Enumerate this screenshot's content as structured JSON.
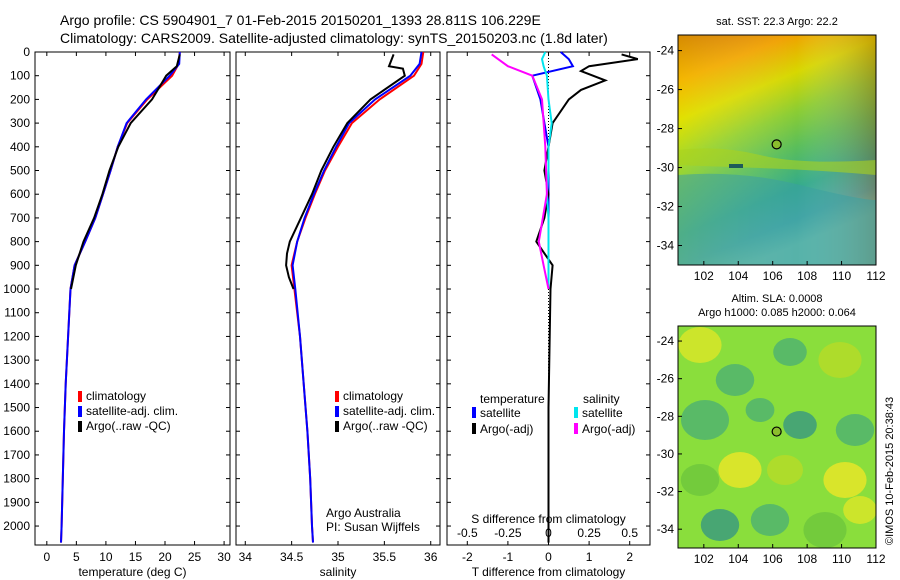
{
  "header": {
    "line1": "Argo profile: CS 5904901_7 01-Feb-2015 20150201_1393 28.811S 106.229E",
    "line2": "Climatology: CARS2009. Satellite-adjusted climatology: synTS_20150203.nc (1.8d later)"
  },
  "depth_ticks": [
    "0",
    "100",
    "200",
    "300",
    "400",
    "500",
    "600",
    "700",
    "800",
    "900",
    "1000",
    "1100",
    "1200",
    "1300",
    "1400",
    "1500",
    "1600",
    "1700",
    "1800",
    "1900",
    "2000"
  ],
  "colors": {
    "climatology": "#ff0000",
    "satellite": "#0000ff",
    "argo": "#000000",
    "sat_salinity": "#00e5ee",
    "argo_salinity": "#ff00ff"
  },
  "chart_data": [
    {
      "type": "line",
      "panel": "temperature",
      "xlabel": "temperature (deg C)",
      "xticks": [
        "0",
        "5",
        "10",
        "15",
        "20",
        "25",
        "30"
      ],
      "xlim": [
        -2,
        31
      ],
      "ylim": [
        2080,
        0
      ],
      "legend": [
        "climatology",
        "satellite-adj. clim.",
        "Argo(..raw -QC)"
      ],
      "series": [
        {
          "name": "climatology",
          "color": "#ff0000",
          "depth": [
            0,
            50,
            100,
            200,
            300,
            400,
            500,
            600,
            700,
            800,
            900,
            1000,
            1200,
            1400,
            1600,
            1800,
            2000,
            2070
          ],
          "values": [
            22.5,
            22.3,
            21.2,
            17.0,
            13.6,
            12.0,
            10.8,
            9.5,
            8.2,
            6.5,
            4.7,
            4.0,
            3.6,
            3.2,
            2.9,
            2.7,
            2.5,
            2.4
          ]
        },
        {
          "name": "satellite-adj. clim.",
          "color": "#0000ff",
          "depth": [
            0,
            50,
            100,
            200,
            300,
            400,
            500,
            600,
            700,
            800,
            900,
            1000,
            1200,
            1400,
            1600,
            1800,
            2000,
            2070
          ],
          "values": [
            22.5,
            22.4,
            20.8,
            16.8,
            13.5,
            12.0,
            10.8,
            9.5,
            8.2,
            6.5,
            4.7,
            4.0,
            3.6,
            3.2,
            2.9,
            2.7,
            2.5,
            2.4
          ]
        },
        {
          "name": "Argo(..raw -QC)",
          "color": "#000000",
          "depth": [
            10,
            60,
            100,
            150,
            200,
            300,
            400,
            500,
            600,
            700,
            800,
            900,
            1000
          ],
          "values": [
            22.5,
            22.0,
            20.2,
            19.0,
            17.8,
            14.2,
            12.1,
            10.6,
            9.4,
            8.0,
            6.2,
            4.9,
            4.1
          ]
        }
      ]
    },
    {
      "type": "line",
      "panel": "salinity",
      "xlabel": "salinity",
      "xticks": [
        "34",
        "34.5",
        "35",
        "35.5",
        "36"
      ],
      "xlim": [
        33.9,
        36.1
      ],
      "ylim": [
        2080,
        0
      ],
      "legend": [
        "climatology",
        "satellite-adj. clim.",
        "Argo(..raw -QC)"
      ],
      "annotation": [
        "Argo Australia",
        "PI: Susan Wijffels"
      ],
      "series": [
        {
          "name": "climatology",
          "color": "#ff0000",
          "depth": [
            0,
            50,
            100,
            200,
            300,
            400,
            500,
            600,
            700,
            800,
            900,
            1000,
            1200,
            1400,
            1600,
            1800,
            2000,
            2070
          ],
          "values": [
            35.92,
            35.9,
            35.82,
            35.45,
            35.15,
            35.0,
            34.86,
            34.75,
            34.65,
            34.56,
            34.5,
            34.53,
            34.59,
            34.63,
            34.67,
            34.7,
            34.72,
            34.73
          ]
        },
        {
          "name": "satellite-adj. clim.",
          "color": "#0000ff",
          "depth": [
            0,
            50,
            100,
            200,
            300,
            400,
            500,
            600,
            700,
            800,
            900,
            1000,
            1200,
            1400,
            1600,
            1800,
            2000,
            2070
          ],
          "values": [
            35.9,
            35.88,
            35.78,
            35.4,
            35.12,
            34.98,
            34.85,
            34.74,
            34.64,
            34.56,
            34.51,
            34.54,
            34.59,
            34.63,
            34.67,
            34.7,
            34.72,
            34.73
          ]
        },
        {
          "name": "Argo(..raw -QC)",
          "color": "#000000",
          "depth": [
            10,
            60,
            70,
            100,
            200,
            300,
            400,
            500,
            600,
            700,
            800,
            850,
            900,
            950,
            1000
          ],
          "values": [
            35.6,
            35.55,
            35.7,
            35.72,
            35.35,
            35.1,
            34.95,
            34.82,
            34.72,
            34.6,
            34.48,
            34.45,
            34.44,
            34.47,
            34.52
          ]
        }
      ]
    },
    {
      "type": "line",
      "panel": "difference",
      "xlabel": "T difference from climatology",
      "xlabel_top": "S difference from climatology",
      "xticks": [
        "-2",
        "-1",
        "0",
        "1",
        "2"
      ],
      "xticks_top": [
        "-0.5",
        "-0.25",
        "0",
        "0.25",
        "0.5"
      ],
      "xlim": [
        -2.5,
        2.5
      ],
      "ylim": [
        2080,
        0
      ],
      "legend_temperature": {
        "title": "temperature",
        "items": [
          "satellite",
          "Argo(-adj)"
        ]
      },
      "legend_salinity": {
        "title": "salinity",
        "items": [
          "satellite",
          "Argo(-adj)"
        ]
      },
      "series": [
        {
          "name": "temperature satellite",
          "color": "#0000ff",
          "depth": [
            0,
            30,
            60,
            100,
            200,
            300,
            400,
            500,
            600,
            700,
            800,
            900,
            1000
          ],
          "values": [
            0.3,
            0.5,
            0.6,
            -0.4,
            -0.2,
            -0.1,
            0,
            0,
            0,
            0,
            0,
            0,
            0
          ]
        },
        {
          "name": "temperature Argo(-adj)",
          "color": "#000000",
          "depth": [
            10,
            30,
            60,
            80,
            120,
            160,
            200,
            300,
            400,
            500,
            600,
            700,
            800,
            900,
            1000,
            1500,
            2070
          ],
          "values": [
            1.8,
            2.2,
            1.0,
            0.8,
            1.4,
            0.8,
            0.5,
            0.1,
            0,
            -0.1,
            0,
            -0.1,
            -0.3,
            0.1,
            0.05,
            0,
            0
          ]
        },
        {
          "name": "salinity satellite",
          "color": "#00e5ee",
          "depth": [
            0,
            30,
            60,
            100,
            200,
            300,
            400,
            500,
            600,
            700,
            800,
            900,
            1000
          ],
          "values": [
            -0.02,
            -0.04,
            -0.03,
            -0.01,
            0,
            0.02,
            0,
            0,
            -0.01,
            0,
            0,
            0,
            0
          ]
        },
        {
          "name": "salinity Argo(-adj)",
          "color": "#ff00ff",
          "depth": [
            10,
            60,
            100,
            200,
            400,
            600,
            800,
            900,
            1000
          ],
          "values": [
            -0.35,
            -0.25,
            -0.1,
            -0.04,
            -0.02,
            -0.01,
            -0.06,
            -0.03,
            0
          ]
        }
      ]
    },
    {
      "type": "heatmap",
      "panel": "sst_map",
      "title": "sat. SST: 22.3 Argo: 22.2",
      "xticks": [
        "102",
        "104",
        "106",
        "108",
        "110",
        "112"
      ],
      "yticks": [
        "-24",
        "-26",
        "-28",
        "-30",
        "-32",
        "-34"
      ],
      "xlim": [
        100.5,
        112
      ],
      "ylim": [
        -35,
        -23.2
      ],
      "marker": {
        "lon": 106.229,
        "lat": -28.811
      }
    },
    {
      "type": "heatmap",
      "panel": "sla_map",
      "title": [
        "Altim. SLA: 0.0008",
        "Argo h1000: 0.085 h2000: 0.064"
      ],
      "xticks": [
        "102",
        "104",
        "106",
        "108",
        "110",
        "112"
      ],
      "yticks": [
        "-24",
        "-26",
        "-28",
        "-30",
        "-32",
        "-34"
      ],
      "xlim": [
        100.5,
        112
      ],
      "ylim": [
        -35,
        -23.2
      ],
      "marker": {
        "lon": 106.229,
        "lat": -28.811
      }
    }
  ],
  "footer": {
    "credit": "©IMOS 10-Feb-2015 20:38:43"
  }
}
